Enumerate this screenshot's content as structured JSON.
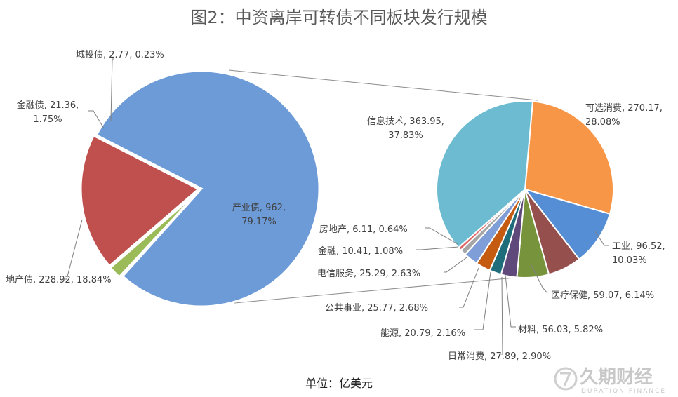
{
  "title": "图2：中资离岸可转债不同板块发行规模",
  "unit_label": "单位：亿美元",
  "watermark": {
    "cn": "久期财经",
    "en": "DURATION FINANCE"
  },
  "chart_data": [
    {
      "type": "pie",
      "name": "main",
      "slices": [
        {
          "label": "产业债",
          "value": 962,
          "percent": "79.17%",
          "color": "#6d9bd8",
          "text": [
            "产业债, 962,",
            "79.17%"
          ]
        },
        {
          "label": "城投债",
          "value": 2.77,
          "percent": "0.23%",
          "color": "#8064a2",
          "text": [
            "城投债, 2.77, 0.23%"
          ]
        },
        {
          "label": "金融债",
          "value": 21.36,
          "percent": "1.75%",
          "color": "#9bbb59",
          "text": [
            "金融债, 21.36,",
            "1.75%"
          ]
        },
        {
          "label": "地产债",
          "value": 228.92,
          "percent": "18.84%",
          "color": "#c0504d",
          "text": [
            "地产债, 228.92, 18.84%"
          ]
        }
      ]
    },
    {
      "type": "pie",
      "name": "breakdown",
      "slices": [
        {
          "label": "可选消费",
          "value": 270.17,
          "percent": "28.08%",
          "color": "#f79646",
          "text": [
            "可选消费, 270.17,",
            "28.08%"
          ]
        },
        {
          "label": "工业",
          "value": 96.52,
          "percent": "10.03%",
          "color": "#558ed5",
          "text": [
            "工业, 96.52,",
            "10.03%"
          ]
        },
        {
          "label": "医疗保健",
          "value": 59.07,
          "percent": "6.14%",
          "color": "#954f4c",
          "text": [
            "医疗保健, 59.07, 6.14%"
          ]
        },
        {
          "label": "材料",
          "value": 56.03,
          "percent": "5.82%",
          "color": "#77933c",
          "text": [
            "材料, 56.03, 5.82%"
          ]
        },
        {
          "label": "日常消费",
          "value": 27.89,
          "percent": "2.90%",
          "color": "#5f497a",
          "text": [
            "日常消费, 27.89, 2.90%"
          ]
        },
        {
          "label": "能源",
          "value": 20.79,
          "percent": "2.16%",
          "color": "#1f6d7b",
          "text": [
            "能源, 20.79, 2.16%"
          ]
        },
        {
          "label": "公共事业",
          "value": 25.77,
          "percent": "2.68%",
          "color": "#c55a11",
          "text": [
            "公共事业, 25.77, 2.68%"
          ]
        },
        {
          "label": "电信服务",
          "value": 25.29,
          "percent": "2.63%",
          "color": "#7f9ed8",
          "text": [
            "电信服务, 25.29, 2.63%"
          ]
        },
        {
          "label": "金融",
          "value": 10.41,
          "percent": "1.08%",
          "color": "#a5a5a5",
          "text": [
            "金融, 10.41, 1.08%"
          ]
        },
        {
          "label": "房地产",
          "value": 6.11,
          "percent": "0.64%",
          "color": "#e06666",
          "text": [
            "房地产, 6.11, 0.64%"
          ]
        },
        {
          "label": "信息技术",
          "value": 363.95,
          "percent": "37.83%",
          "color": "#6cbbd1",
          "text": [
            "信息技术, 363.95,",
            "37.83%"
          ]
        }
      ]
    }
  ]
}
